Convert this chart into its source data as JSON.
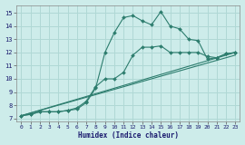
{
  "xlabel": "Humidex (Indice chaleur)",
  "xlim": [
    -0.5,
    23.5
  ],
  "ylim": [
    6.8,
    15.6
  ],
  "yticks": [
    7,
    8,
    9,
    10,
    11,
    12,
    13,
    14,
    15
  ],
  "xticks": [
    0,
    1,
    2,
    3,
    4,
    5,
    6,
    7,
    8,
    9,
    10,
    11,
    12,
    13,
    14,
    15,
    16,
    17,
    18,
    19,
    20,
    21,
    22,
    23
  ],
  "background_color": "#cdecea",
  "grid_color": "#b0d8d5",
  "line_color": "#2d7d6e",
  "lines": [
    {
      "x": [
        0,
        1,
        2,
        3,
        4,
        5,
        6,
        7,
        8,
        9,
        10,
        11,
        12,
        13,
        14,
        15,
        16,
        17,
        18,
        19,
        20,
        21,
        22,
        23
      ],
      "y": [
        7.2,
        7.3,
        7.5,
        7.5,
        7.5,
        7.6,
        7.7,
        8.2,
        9.3,
        12.0,
        13.5,
        14.65,
        14.8,
        14.4,
        14.1,
        15.1,
        14.0,
        13.8,
        13.0,
        12.9,
        11.5,
        11.6,
        11.9,
        12.0
      ],
      "has_marker": true
    },
    {
      "x": [
        0,
        1,
        2,
        3,
        4,
        5,
        6,
        7,
        8,
        9,
        10,
        11,
        12,
        13,
        14,
        15,
        16,
        17,
        18,
        19,
        20,
        21,
        22,
        23
      ],
      "y": [
        7.2,
        7.3,
        7.5,
        7.5,
        7.5,
        7.6,
        7.8,
        8.3,
        9.4,
        10.0,
        10.0,
        10.5,
        11.8,
        12.4,
        12.4,
        12.5,
        12.0,
        12.0,
        12.0,
        12.0,
        11.7,
        11.6,
        11.9,
        12.0
      ],
      "has_marker": true
    },
    {
      "x": [
        0,
        23
      ],
      "y": [
        7.2,
        12.0
      ],
      "has_marker": false
    },
    {
      "x": [
        0,
        23
      ],
      "y": [
        7.2,
        11.8
      ],
      "has_marker": false
    }
  ]
}
